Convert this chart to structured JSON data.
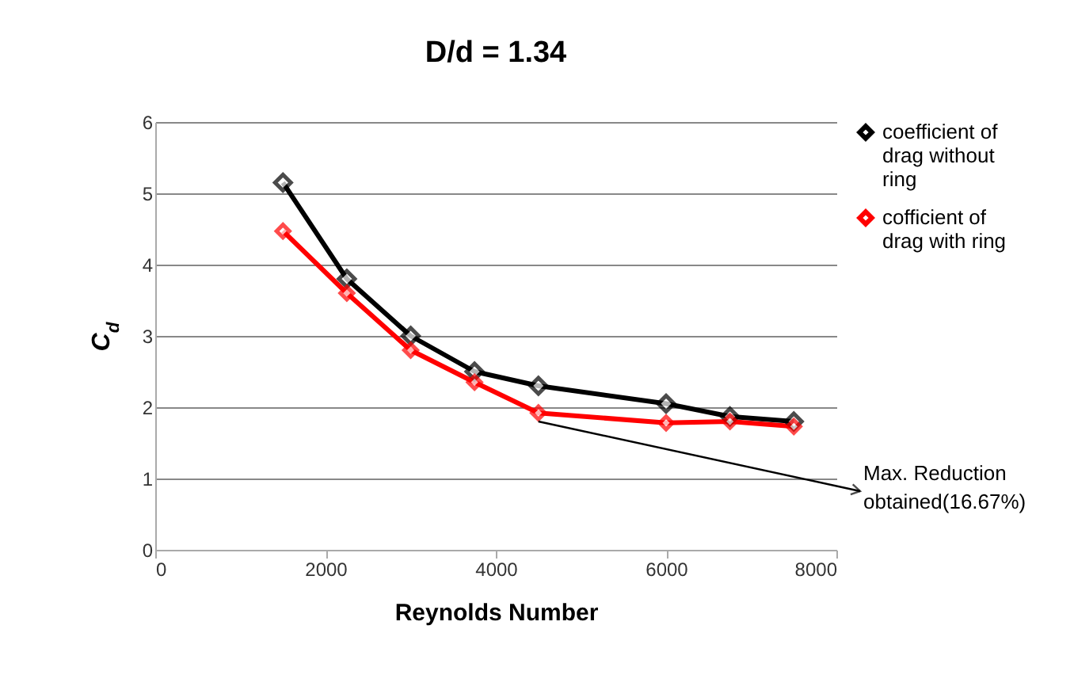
{
  "chart_data": {
    "type": "line",
    "title": "D/d = 1.34",
    "xlabel": "Reynolds Number",
    "ylabel": "C$_{d}$",
    "x": [
      1500,
      2250,
      3000,
      3750,
      4500,
      6000,
      6750,
      7500
    ],
    "series": [
      {
        "name": "coefficient of drag without ring",
        "color": "#000000",
        "values": [
          5.15,
          3.8,
          3.0,
          2.5,
          2.3,
          2.05,
          1.87,
          1.8
        ]
      },
      {
        "name": "cofficient of drag with ring",
        "color": "#ff0000",
        "values": [
          4.47,
          3.6,
          2.8,
          2.35,
          1.92,
          1.78,
          1.8,
          1.73
        ]
      }
    ],
    "xlim": [
      0,
      8000
    ],
    "xticks": [
      0,
      2000,
      4000,
      6000,
      8000
    ],
    "ylim": [
      0,
      6
    ],
    "yticks": [
      0,
      1,
      2,
      3,
      4,
      5,
      6
    ],
    "grid": "y",
    "legend": "top right",
    "marker": "diamond",
    "line_style": "solid",
    "annotations": [
      {
        "text": "Max. Reduction obtained(16.67%)",
        "x": 4500,
        "y": 1.8
      }
    ]
  }
}
